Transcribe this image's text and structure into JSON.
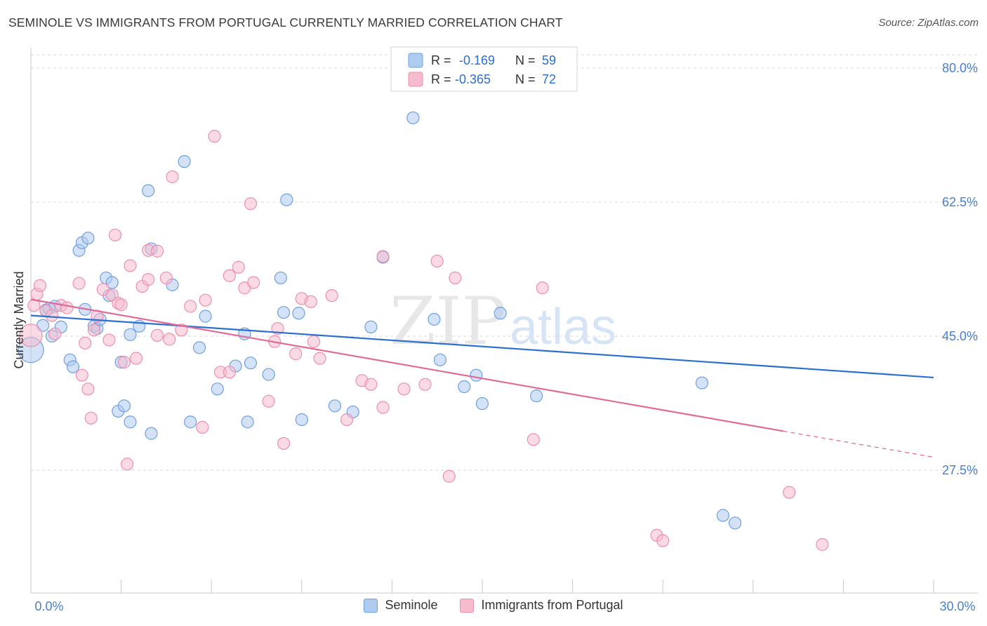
{
  "header": {
    "title": "SEMINOLE VS IMMIGRANTS FROM PORTUGAL CURRENTLY MARRIED CORRELATION CHART",
    "source": "Source: ZipAtlas.com"
  },
  "watermark": {
    "zip": "ZIP",
    "atlas": "atlas"
  },
  "colors": {
    "blue_fill": "#aecbf0",
    "blue_stroke": "#6fa0df",
    "blue_line": "#2b6fcf",
    "pink_fill": "#f6bccd",
    "pink_stroke": "#ee8fad",
    "pink_line": "#e06a98",
    "tick_label": "#4a7fd0",
    "grid": "#d8d8d8"
  },
  "legend": {
    "rows": [
      {
        "r_label": "R =",
        "r_value": "-0.169",
        "n_label": "N =",
        "n_value": "59"
      },
      {
        "r_label": "R =",
        "r_value": "-0.365",
        "n_label": "N =",
        "n_value": "72"
      }
    ]
  },
  "chart_data": {
    "type": "scatter",
    "title": "SEMINOLE VS IMMIGRANTS FROM PORTUGAL CURRENTLY MARRIED CORRELATION CHART",
    "xlabel": "",
    "ylabel": "Currently Married",
    "xlim": [
      0,
      30
    ],
    "ylim": [
      11.5,
      82
    ],
    "x_tick_labels": [
      "0.0%",
      "30.0%"
    ],
    "y_ticks": [
      80,
      62.5,
      45,
      27.5
    ],
    "y_tick_labels": [
      "80.0%",
      "62.5%",
      "45.0%",
      "27.5%"
    ],
    "grid": "horizontal dashed",
    "legend_position": "top-center",
    "series": [
      {
        "name": "Seminole",
        "r": -0.169,
        "n": 59,
        "trend": {
          "x": [
            0,
            30
          ],
          "y": [
            47.7,
            39.6
          ]
        },
        "points": [
          [
            0.0,
            43.2
          ],
          [
            0.4,
            46.4
          ],
          [
            0.5,
            48.4
          ],
          [
            0.6,
            48.6
          ],
          [
            0.7,
            45.0
          ],
          [
            0.8,
            48.9
          ],
          [
            1.0,
            46.2
          ],
          [
            1.3,
            41.9
          ],
          [
            1.4,
            41.0
          ],
          [
            1.6,
            56.2
          ],
          [
            1.7,
            57.2
          ],
          [
            1.8,
            48.5
          ],
          [
            1.9,
            57.8
          ],
          [
            2.1,
            46.3
          ],
          [
            2.2,
            46.0
          ],
          [
            2.3,
            47.2
          ],
          [
            2.5,
            52.6
          ],
          [
            2.6,
            50.3
          ],
          [
            2.7,
            52.0
          ],
          [
            2.9,
            35.2
          ],
          [
            3.0,
            41.6
          ],
          [
            3.1,
            35.9
          ],
          [
            3.3,
            33.8
          ],
          [
            3.3,
            45.2
          ],
          [
            3.6,
            46.3
          ],
          [
            3.9,
            64.0
          ],
          [
            4.0,
            56.4
          ],
          [
            4.0,
            32.3
          ],
          [
            4.7,
            51.7
          ],
          [
            5.1,
            67.8
          ],
          [
            5.3,
            33.8
          ],
          [
            5.6,
            43.5
          ],
          [
            5.8,
            47.6
          ],
          [
            6.2,
            38.1
          ],
          [
            6.8,
            41.1
          ],
          [
            7.1,
            45.3
          ],
          [
            7.2,
            33.8
          ],
          [
            7.3,
            41.5
          ],
          [
            7.9,
            40.0
          ],
          [
            8.3,
            52.6
          ],
          [
            8.4,
            48.1
          ],
          [
            8.5,
            62.8
          ],
          [
            8.9,
            48.0
          ],
          [
            9.0,
            34.1
          ],
          [
            10.1,
            35.9
          ],
          [
            10.7,
            35.1
          ],
          [
            11.3,
            46.2
          ],
          [
            11.7,
            55.3
          ],
          [
            12.7,
            73.5
          ],
          [
            13.4,
            47.2
          ],
          [
            13.6,
            41.9
          ],
          [
            14.4,
            38.4
          ],
          [
            14.8,
            39.9
          ],
          [
            15.0,
            36.2
          ],
          [
            15.6,
            48.0
          ],
          [
            16.8,
            37.2
          ],
          [
            22.3,
            38.9
          ],
          [
            23.0,
            21.6
          ],
          [
            23.4,
            20.6
          ]
        ]
      },
      {
        "name": "Immigrants from Portugal",
        "r": -0.365,
        "n": 72,
        "trend": {
          "x": [
            0,
            25
          ],
          "y": [
            49.8,
            32.6
          ]
        },
        "trend_dashed": {
          "x": [
            25,
            30
          ],
          "y": [
            32.6,
            29.2
          ]
        },
        "points": [
          [
            0.0,
            45.1
          ],
          [
            0.1,
            49.0
          ],
          [
            0.2,
            50.5
          ],
          [
            0.3,
            51.6
          ],
          [
            0.5,
            48.3
          ],
          [
            0.7,
            47.7
          ],
          [
            0.8,
            45.3
          ],
          [
            1.0,
            49.0
          ],
          [
            1.2,
            48.7
          ],
          [
            1.6,
            51.9
          ],
          [
            1.7,
            39.9
          ],
          [
            1.8,
            44.1
          ],
          [
            1.9,
            38.1
          ],
          [
            2.0,
            34.3
          ],
          [
            2.1,
            45.8
          ],
          [
            2.2,
            47.6
          ],
          [
            2.4,
            51.1
          ],
          [
            2.6,
            44.5
          ],
          [
            2.7,
            50.4
          ],
          [
            2.8,
            58.2
          ],
          [
            2.9,
            49.3
          ],
          [
            3.0,
            49.1
          ],
          [
            3.1,
            41.6
          ],
          [
            3.2,
            28.3
          ],
          [
            3.3,
            54.2
          ],
          [
            3.5,
            42.1
          ],
          [
            3.7,
            51.5
          ],
          [
            3.9,
            52.4
          ],
          [
            3.9,
            56.2
          ],
          [
            4.2,
            56.1
          ],
          [
            4.2,
            45.1
          ],
          [
            4.5,
            52.6
          ],
          [
            4.6,
            44.6
          ],
          [
            4.7,
            65.8
          ],
          [
            5.0,
            45.8
          ],
          [
            5.3,
            48.9
          ],
          [
            5.7,
            33.1
          ],
          [
            5.8,
            49.7
          ],
          [
            6.1,
            71.1
          ],
          [
            6.3,
            40.3
          ],
          [
            6.6,
            40.3
          ],
          [
            6.6,
            52.9
          ],
          [
            6.9,
            54.0
          ],
          [
            7.1,
            51.3
          ],
          [
            7.3,
            62.3
          ],
          [
            7.4,
            52.0
          ],
          [
            7.9,
            36.5
          ],
          [
            8.1,
            44.3
          ],
          [
            8.2,
            46.0
          ],
          [
            8.4,
            31.0
          ],
          [
            8.8,
            42.7
          ],
          [
            9.0,
            49.9
          ],
          [
            9.3,
            49.5
          ],
          [
            9.4,
            44.3
          ],
          [
            9.6,
            42.1
          ],
          [
            10.0,
            50.3
          ],
          [
            10.5,
            34.1
          ],
          [
            11.0,
            39.2
          ],
          [
            11.3,
            38.7
          ],
          [
            11.7,
            55.4
          ],
          [
            11.7,
            35.7
          ],
          [
            12.4,
            38.1
          ],
          [
            13.1,
            38.7
          ],
          [
            13.5,
            54.8
          ],
          [
            13.9,
            26.7
          ],
          [
            14.1,
            52.6
          ],
          [
            16.7,
            31.5
          ],
          [
            17.0,
            51.3
          ],
          [
            20.8,
            19.0
          ],
          [
            21.0,
            18.3
          ],
          [
            25.2,
            24.6
          ],
          [
            26.3,
            17.8
          ]
        ]
      }
    ]
  }
}
